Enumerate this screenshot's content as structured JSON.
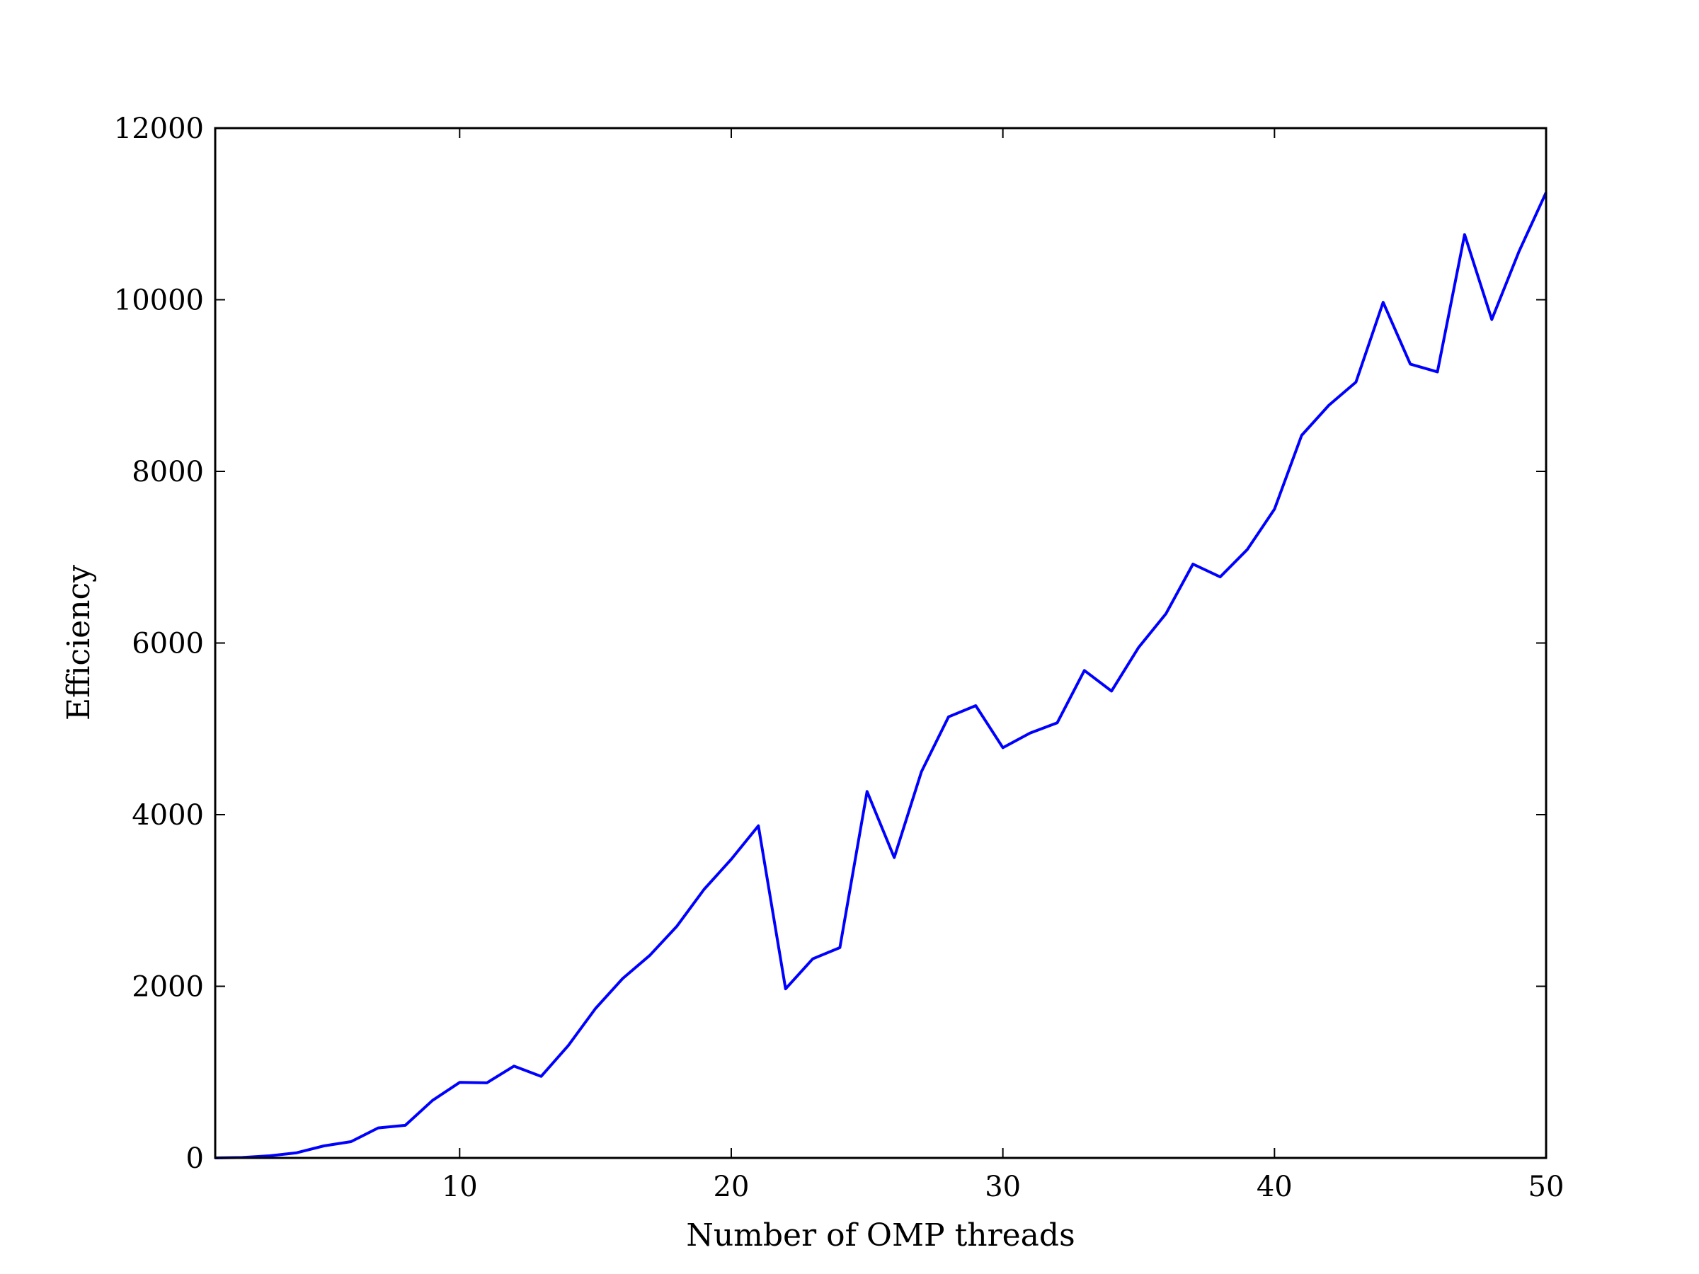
{
  "chart_data": {
    "type": "line",
    "title": "",
    "xlabel": "Number of OMP threads",
    "ylabel": "Efficiency",
    "xlim": [
      1,
      50
    ],
    "ylim": [
      0,
      12000
    ],
    "xticks": [
      10,
      20,
      30,
      40,
      50
    ],
    "xtick_labels": [
      "10",
      "20",
      "30",
      "40",
      "50"
    ],
    "yticks": [
      0,
      2000,
      4000,
      6000,
      8000,
      10000,
      12000
    ],
    "ytick_labels": [
      "0",
      "2000",
      "4000",
      "6000",
      "8000",
      "10000",
      "12000"
    ],
    "grid": false,
    "legend": null,
    "series": [
      {
        "color": "#0000ff",
        "x": [
          1,
          2,
          3,
          4,
          5,
          6,
          7,
          8,
          9,
          10,
          11,
          12,
          13,
          14,
          15,
          16,
          17,
          18,
          19,
          20,
          21,
          22,
          23,
          24,
          25,
          26,
          27,
          28,
          29,
          30,
          31,
          32,
          33,
          34,
          35,
          36,
          37,
          38,
          39,
          40,
          41,
          42,
          43,
          44,
          45,
          46,
          47,
          48,
          49,
          50
        ],
        "y": [
          0,
          5,
          25,
          60,
          140,
          190,
          350,
          380,
          670,
          880,
          875,
          1070,
          950,
          1310,
          1740,
          2090,
          2360,
          2700,
          3130,
          3480,
          3870,
          1970,
          2320,
          2450,
          4270,
          3500,
          4500,
          5140,
          5270,
          4780,
          4950,
          5070,
          5680,
          5440,
          5950,
          6340,
          6920,
          6770,
          7090,
          7560,
          8420,
          8770,
          9040,
          9970,
          9250,
          9160,
          10760,
          9770,
          10560,
          11250
        ]
      }
    ]
  }
}
